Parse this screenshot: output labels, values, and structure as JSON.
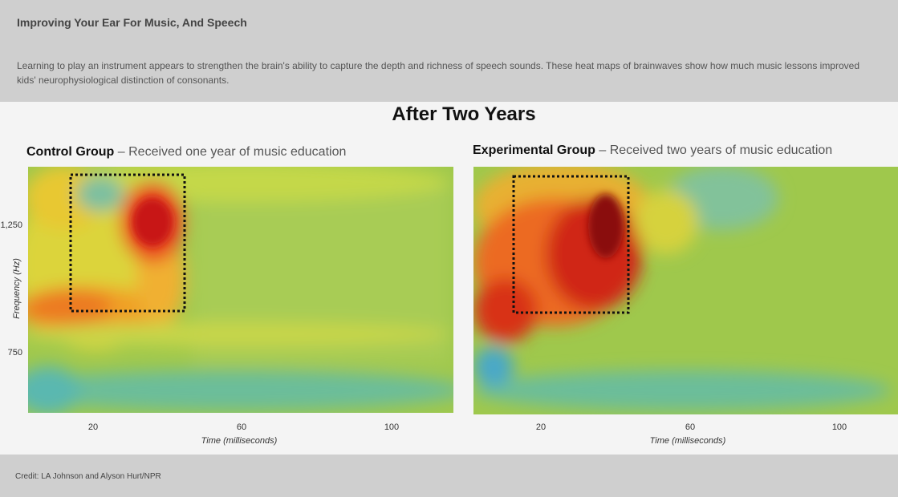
{
  "header": {
    "title": "Improving Your Ear For Music, And Speech",
    "description": "Learning to play an instrument appears to strengthen the brain's ability to capture the depth and richness of speech sounds. These heat maps of brainwaves show how much music lessons improved kids' neurophysiological distinction of consonants."
  },
  "figure": {
    "title": "After Two Years",
    "panels": [
      {
        "group": "Control Group",
        "description": "– Received one year of music education",
        "y_label": "Frequency (Hz)",
        "y_ticks": [
          "1,250",
          "750"
        ],
        "x_ticks": [
          "20",
          "60",
          "100"
        ],
        "x_label": "Time (milliseconds)"
      },
      {
        "group": "Experimental Group",
        "description": "– Received two years of music education",
        "x_ticks": [
          "20",
          "60",
          "100"
        ],
        "x_label": "Time (milliseconds)"
      }
    ]
  },
  "credit": "Credit: LA Johnson and Alyson Hurt/NPR"
}
